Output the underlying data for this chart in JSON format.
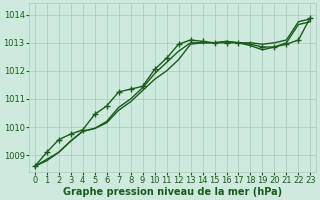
{
  "xlabel": "Graphe pression niveau de la mer (hPa)",
  "background_color": "#ceeade",
  "grid_color": "#aacaba",
  "line_color": "#1a5c1a",
  "ylim": [
    1008.4,
    1014.4
  ],
  "xlim": [
    -0.5,
    23.5
  ],
  "xticks": [
    0,
    1,
    2,
    3,
    4,
    5,
    6,
    7,
    8,
    9,
    10,
    11,
    12,
    13,
    14,
    15,
    16,
    17,
    18,
    19,
    20,
    21,
    22,
    23
  ],
  "yticks": [
    1009,
    1010,
    1011,
    1012,
    1013,
    1014
  ],
  "series": [
    {
      "y": [
        1008.6,
        1008.8,
        1009.1,
        1009.5,
        1009.85,
        1009.95,
        1010.2,
        1010.7,
        1011.0,
        1011.4,
        1011.9,
        1012.3,
        1012.7,
        1013.0,
        1013.0,
        1013.0,
        1013.05,
        1013.0,
        1013.0,
        1012.95,
        1013.0,
        1013.1,
        1013.75,
        1013.85
      ],
      "marker": null,
      "lw": 1.0
    },
    {
      "y": [
        1008.6,
        1008.85,
        1009.1,
        1009.5,
        1009.85,
        1009.95,
        1010.15,
        1010.6,
        1010.9,
        1011.3,
        1011.7,
        1012.0,
        1012.4,
        1012.95,
        1013.0,
        1013.0,
        1013.05,
        1013.0,
        1012.9,
        1012.75,
        1012.85,
        1013.0,
        1013.65,
        1013.75
      ],
      "marker": null,
      "lw": 1.0
    },
    {
      "y": [
        1008.6,
        1009.1,
        1009.55,
        1009.75,
        1009.9,
        1010.45,
        1010.75,
        1011.25,
        1011.35,
        1011.45,
        1012.05,
        1012.45,
        1012.95,
        1013.1,
        1013.05,
        1013.0,
        1013.0,
        1013.0,
        1012.95,
        1012.85,
        1012.85,
        1012.95,
        1013.1,
        1013.9
      ],
      "marker": "+",
      "lw": 1.0
    }
  ],
  "marker_size": 4.5,
  "font_color": "#1a5c1a",
  "xlabel_fontsize": 7,
  "tick_fontsize": 6,
  "ylabel_fontsize": 6
}
